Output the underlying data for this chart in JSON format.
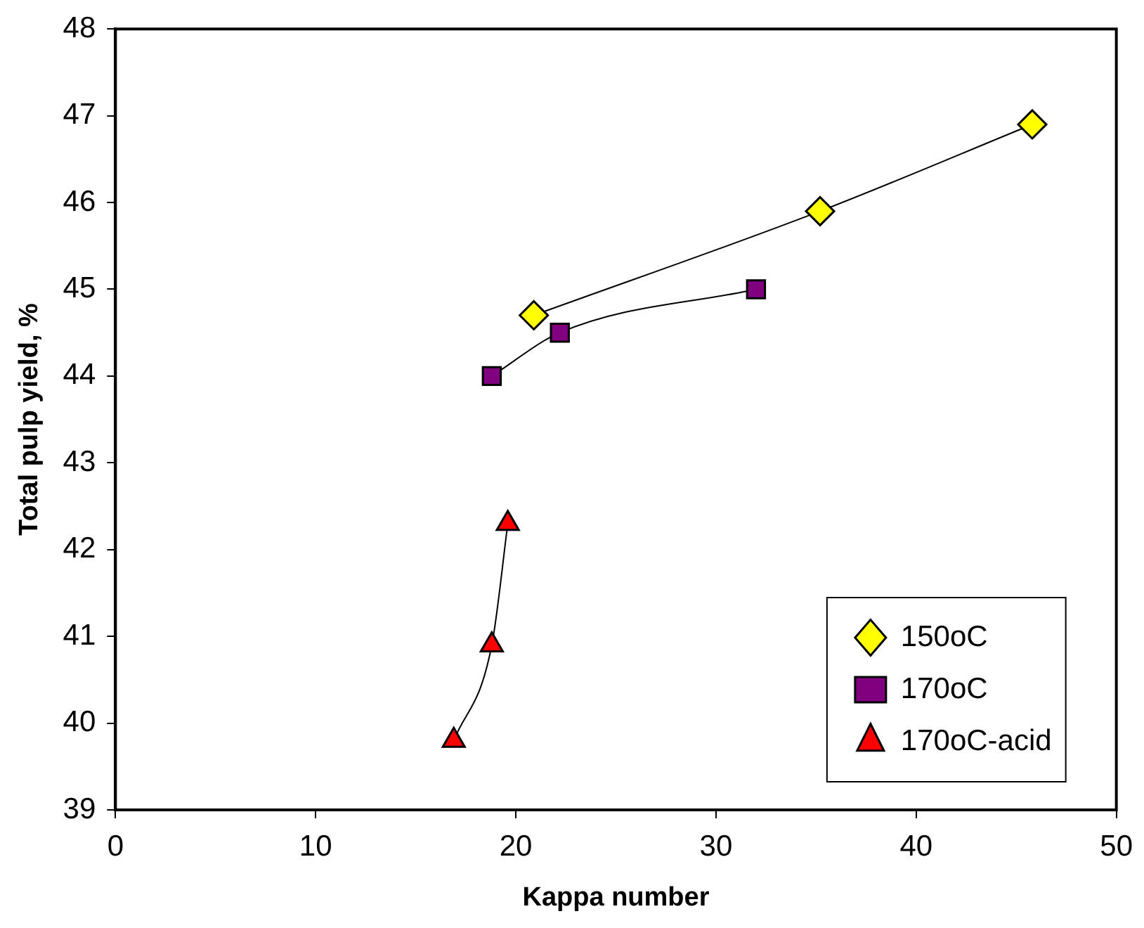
{
  "chart_data": {
    "type": "line",
    "xlabel": "Kappa number",
    "ylabel": "Total pulp yield, %",
    "xlim": [
      0,
      50
    ],
    "xticks": [
      0,
      10,
      20,
      30,
      40,
      50
    ],
    "ylim": [
      39,
      48
    ],
    "yticks": [
      39,
      40,
      41,
      42,
      43,
      44,
      45,
      46,
      47,
      48
    ],
    "grid": false,
    "legend": "bottom right",
    "line_style": "solid",
    "series": [
      {
        "name": "150oC",
        "color": "#ffff00",
        "marker": "diamond",
        "x": [
          20.9,
          35.2,
          45.8
        ],
        "values": [
          44.7,
          45.9,
          46.9
        ]
      },
      {
        "name": "170oC",
        "color": "#800080",
        "marker": "square",
        "x": [
          18.8,
          22.2,
          32.0
        ],
        "values": [
          44.0,
          44.5,
          45.0
        ]
      },
      {
        "name": "170oC-acid",
        "color": "#ff0000",
        "marker": "triangle",
        "x": [
          16.9,
          18.8,
          19.6
        ],
        "values": [
          39.8,
          40.9,
          42.3
        ]
      }
    ]
  }
}
